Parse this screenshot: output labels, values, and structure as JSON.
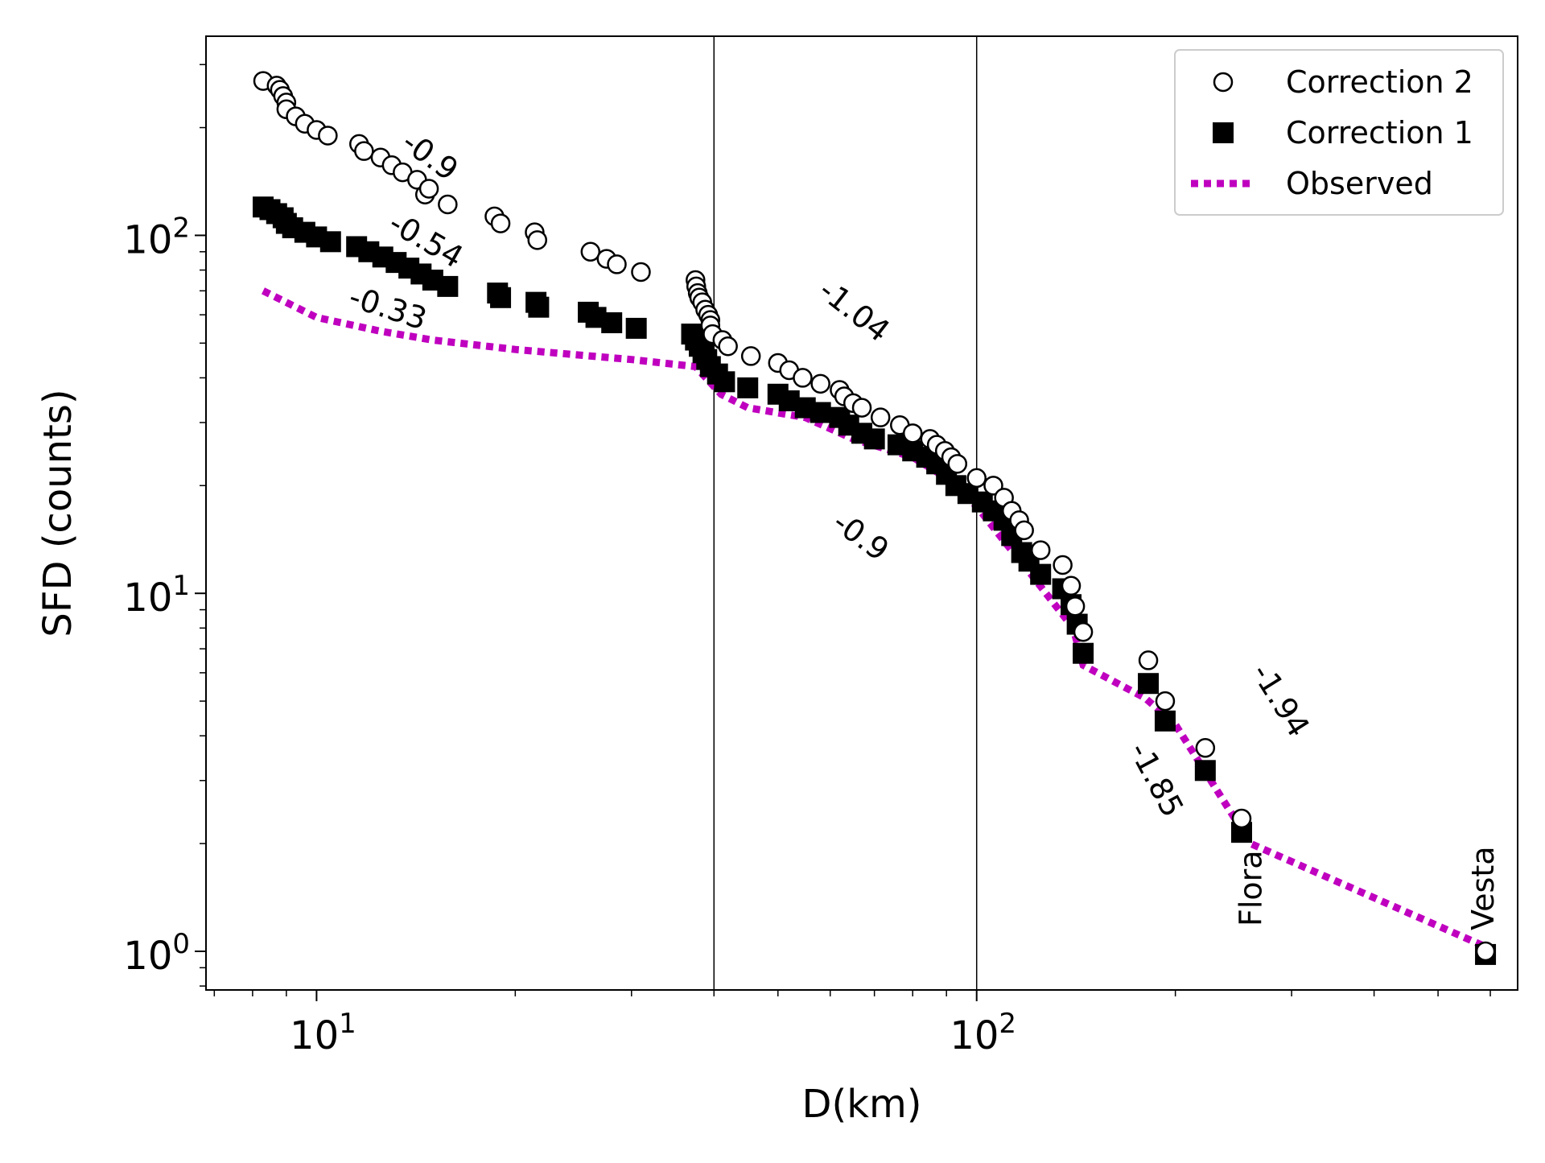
{
  "chart_data": {
    "type": "scatter",
    "xlabel": "D(km)",
    "ylabel": "SFD (counts)",
    "xscale": "log",
    "yscale": "log",
    "xlim": [
      6.8,
      660
    ],
    "ylim": [
      0.78,
      360
    ],
    "x_ticks": [
      {
        "base": "10",
        "exp": "1",
        "value": 10
      },
      {
        "base": "10",
        "exp": "2",
        "value": 100
      }
    ],
    "y_ticks": [
      {
        "base": "10",
        "exp": "0",
        "value": 1
      },
      {
        "base": "10",
        "exp": "1",
        "value": 10
      },
      {
        "base": "10",
        "exp": "2",
        "value": 100
      }
    ],
    "vertical_lines": [
      40,
      100
    ],
    "legend": {
      "position": "top-right"
    },
    "series": [
      {
        "name": "Correction 2",
        "marker": "circle-open",
        "color": "#000000",
        "points": [
          [
            8.3,
            270
          ],
          [
            8.7,
            262
          ],
          [
            8.8,
            255
          ],
          [
            8.9,
            245
          ],
          [
            9.0,
            235
          ],
          [
            9.0,
            225
          ],
          [
            9.3,
            215
          ],
          [
            9.6,
            205
          ],
          [
            10.0,
            197
          ],
          [
            10.4,
            190
          ],
          [
            11.6,
            180
          ],
          [
            11.8,
            172
          ],
          [
            12.5,
            165
          ],
          [
            13.0,
            157
          ],
          [
            13.5,
            150
          ],
          [
            14.2,
            143
          ],
          [
            14.6,
            130
          ],
          [
            14.8,
            135
          ],
          [
            15.8,
            122
          ],
          [
            18.6,
            113
          ],
          [
            19.0,
            108
          ],
          [
            21.4,
            102
          ],
          [
            21.6,
            97
          ],
          [
            26.0,
            90
          ],
          [
            27.5,
            86
          ],
          [
            28.5,
            83
          ],
          [
            31.0,
            79
          ],
          [
            37.5,
            75
          ],
          [
            37.6,
            72
          ],
          [
            37.8,
            69
          ],
          [
            38.0,
            67
          ],
          [
            38.4,
            65
          ],
          [
            38.8,
            62
          ],
          [
            39.2,
            60
          ],
          [
            39.5,
            58
          ],
          [
            39.5,
            56
          ],
          [
            39.8,
            53
          ],
          [
            41.2,
            51
          ],
          [
            42.0,
            49
          ],
          [
            45.5,
            46
          ],
          [
            50.0,
            44
          ],
          [
            52.0,
            42
          ],
          [
            54.5,
            40
          ],
          [
            58.0,
            38.5
          ],
          [
            62.0,
            37
          ],
          [
            63.0,
            35.5
          ],
          [
            65.0,
            34
          ],
          [
            67.0,
            33
          ],
          [
            71.5,
            31
          ],
          [
            76.5,
            29.5
          ],
          [
            80.0,
            28
          ],
          [
            85.0,
            27
          ],
          [
            87.0,
            26
          ],
          [
            89.5,
            25
          ],
          [
            91.5,
            24
          ],
          [
            93.5,
            23
          ],
          [
            100.0,
            21
          ],
          [
            106.0,
            20
          ],
          [
            110.0,
            18.5
          ],
          [
            113.0,
            17
          ],
          [
            116.0,
            16
          ],
          [
            118.0,
            15
          ],
          [
            125.0,
            13.2
          ],
          [
            135.0,
            12
          ],
          [
            139.0,
            10.5
          ],
          [
            141.0,
            9.2
          ],
          [
            145.0,
            7.8
          ],
          [
            182.0,
            6.5
          ],
          [
            193.0,
            5.0
          ],
          [
            222.0,
            3.7
          ],
          [
            252.0,
            2.35
          ],
          [
            590.0,
            1.0
          ]
        ]
      },
      {
        "name": "Correction 1",
        "marker": "square-filled",
        "color": "#000000",
        "points": [
          [
            8.3,
            120
          ],
          [
            8.5,
            118
          ],
          [
            8.7,
            115
          ],
          [
            8.9,
            112
          ],
          [
            9.0,
            108
          ],
          [
            9.2,
            105
          ],
          [
            9.6,
            102
          ],
          [
            10.0,
            99
          ],
          [
            10.5,
            96
          ],
          [
            11.5,
            93
          ],
          [
            12.0,
            90
          ],
          [
            12.6,
            87
          ],
          [
            13.2,
            84
          ],
          [
            13.8,
            81
          ],
          [
            14.4,
            78
          ],
          [
            15.0,
            75
          ],
          [
            15.8,
            72
          ],
          [
            18.8,
            69
          ],
          [
            19.0,
            67
          ],
          [
            21.5,
            65
          ],
          [
            21.7,
            63
          ],
          [
            25.8,
            61
          ],
          [
            26.5,
            59
          ],
          [
            28.0,
            57
          ],
          [
            30.5,
            55
          ],
          [
            37.0,
            53
          ],
          [
            37.5,
            51
          ],
          [
            38.0,
            49
          ],
          [
            38.5,
            47
          ],
          [
            39.0,
            45
          ],
          [
            39.5,
            43
          ],
          [
            40.5,
            41
          ],
          [
            41.5,
            39
          ],
          [
            45.0,
            37.5
          ],
          [
            50.0,
            36
          ],
          [
            52.0,
            34.5
          ],
          [
            55.0,
            33
          ],
          [
            58.0,
            32
          ],
          [
            62.0,
            31
          ],
          [
            64.0,
            29.5
          ],
          [
            67.0,
            28
          ],
          [
            70.0,
            27
          ],
          [
            76.0,
            26
          ],
          [
            80.0,
            25
          ],
          [
            84.0,
            24
          ],
          [
            87.0,
            23
          ],
          [
            90.0,
            21.5
          ],
          [
            93.0,
            20
          ],
          [
            97.0,
            19
          ],
          [
            102.0,
            18
          ],
          [
            106.0,
            17
          ],
          [
            110.0,
            16
          ],
          [
            113.0,
            14.5
          ],
          [
            117.0,
            13
          ],
          [
            120.0,
            12.3
          ],
          [
            125.0,
            11.3
          ],
          [
            135.0,
            10.3
          ],
          [
            139.0,
            9.3
          ],
          [
            142.0,
            8.2
          ],
          [
            145.0,
            6.8
          ],
          [
            182.0,
            5.6
          ],
          [
            193.0,
            4.4
          ],
          [
            222.0,
            3.2
          ],
          [
            252.0,
            2.15
          ],
          [
            590.0,
            0.98
          ]
        ]
      },
      {
        "name": "Observed",
        "marker": "line-dotted",
        "color": "#bf00bf",
        "points": [
          [
            8.3,
            70
          ],
          [
            10,
            59
          ],
          [
            12.5,
            54
          ],
          [
            15,
            51
          ],
          [
            20,
            48
          ],
          [
            30,
            45
          ],
          [
            37.5,
            43
          ],
          [
            41,
            36
          ],
          [
            45,
            33
          ],
          [
            55,
            31
          ],
          [
            65,
            27
          ],
          [
            80,
            24
          ],
          [
            90,
            21
          ],
          [
            100,
            17.5
          ],
          [
            110,
            14
          ],
          [
            120,
            11.5
          ],
          [
            140,
            8
          ],
          [
            145,
            6.3
          ],
          [
            180,
            5.1
          ],
          [
            200,
            4.3
          ],
          [
            260,
            2.0
          ],
          [
            590,
            1.03
          ]
        ]
      }
    ],
    "annotations": [
      {
        "text": "-0.9",
        "x": 14.8,
        "y": 165,
        "rotation": 36
      },
      {
        "text": "-0.54",
        "x": 14.6,
        "y": 96,
        "rotation": 30
      },
      {
        "text": "-0.33",
        "x": 12.8,
        "y": 62,
        "rotation": 18
      },
      {
        "text": "-1.04",
        "x": 65,
        "y": 61,
        "rotation": 38
      },
      {
        "text": "-0.9",
        "x": 66.5,
        "y": 14.3,
        "rotation": 36
      },
      {
        "text": "-1.94",
        "x": 287,
        "y": 5.0,
        "rotation": 58
      },
      {
        "text": "-1.85",
        "x": 186,
        "y": 3.0,
        "rotation": 62
      },
      {
        "text": "Flora",
        "x": 262,
        "y": 1.5,
        "rotation": -90
      },
      {
        "text": "Vesta",
        "x": 589,
        "y": 1.5,
        "rotation": -90
      }
    ]
  }
}
